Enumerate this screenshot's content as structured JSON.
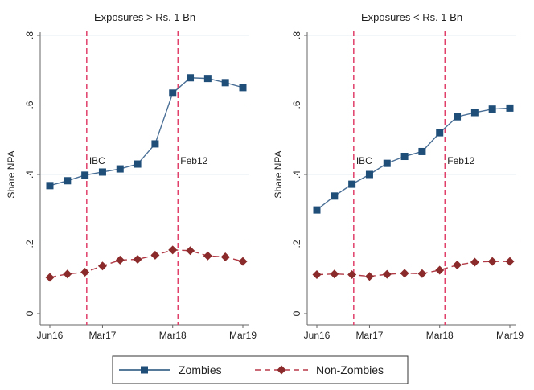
{
  "chart_data": [
    {
      "type": "line",
      "title": "Exposures > Rs. 1 Bn",
      "xlabel": "",
      "ylabel": "Share NPA",
      "ylim": [
        0,
        0.8
      ],
      "yticks": [
        0,
        0.2,
        0.4,
        0.6,
        0.8
      ],
      "ytick_labels": [
        "0",
        ".2",
        ".4",
        ".6",
        ".8"
      ],
      "xtick_labels": [
        "Jun16",
        "Mar17",
        "Mar18",
        "Mar19"
      ],
      "xtick_index": [
        0,
        3,
        7,
        11
      ],
      "x": [
        "Jun16",
        "Sep16",
        "Dec16",
        "Mar17",
        "Jun17",
        "Sep17",
        "Dec17",
        "Mar18",
        "Jun18",
        "Sep18",
        "Dec18",
        "Mar19"
      ],
      "grid": true,
      "vlines": [
        {
          "label": "IBC",
          "at_index": 2.1
        },
        {
          "label": "Feb12",
          "at_index": 7.3
        }
      ],
      "series": [
        {
          "name": "Zombies",
          "color": "#1f4e79",
          "marker": "square",
          "style": "solid",
          "values": [
            0.368,
            0.382,
            0.398,
            0.407,
            0.416,
            0.43,
            0.488,
            0.634,
            0.678,
            0.676,
            0.664,
            0.65
          ]
        },
        {
          "name": "Non-Zombies",
          "color": "#8b2a2a",
          "marker": "diamond",
          "style": "dashed",
          "values": [
            0.104,
            0.114,
            0.119,
            0.137,
            0.154,
            0.156,
            0.168,
            0.183,
            0.181,
            0.166,
            0.163,
            0.15
          ]
        }
      ]
    },
    {
      "type": "line",
      "title": "Exposures < Rs. 1 Bn",
      "xlabel": "",
      "ylabel": "Share NPA",
      "ylim": [
        0,
        0.8
      ],
      "yticks": [
        0,
        0.2,
        0.4,
        0.6,
        0.8
      ],
      "ytick_labels": [
        "0",
        ".2",
        ".4",
        ".6",
        ".8"
      ],
      "xtick_labels": [
        "Jun16",
        "Mar17",
        "Mar18",
        "Mar19"
      ],
      "xtick_index": [
        0,
        3,
        7,
        11
      ],
      "x": [
        "Jun16",
        "Sep16",
        "Dec16",
        "Mar17",
        "Jun17",
        "Sep17",
        "Dec17",
        "Mar18",
        "Jun18",
        "Sep18",
        "Dec18",
        "Mar19"
      ],
      "grid": true,
      "vlines": [
        {
          "label": "IBC",
          "at_index": 2.1
        },
        {
          "label": "Feb12",
          "at_index": 7.3
        }
      ],
      "series": [
        {
          "name": "Zombies",
          "color": "#1f4e79",
          "marker": "square",
          "style": "solid",
          "values": [
            0.298,
            0.338,
            0.372,
            0.4,
            0.432,
            0.452,
            0.466,
            0.52,
            0.566,
            0.578,
            0.588,
            0.591
          ]
        },
        {
          "name": "Non-Zombies",
          "color": "#8b2a2a",
          "marker": "diamond",
          "style": "dashed",
          "values": [
            0.112,
            0.114,
            0.112,
            0.107,
            0.113,
            0.116,
            0.115,
            0.125,
            0.14,
            0.148,
            0.15,
            0.15
          ]
        }
      ]
    }
  ],
  "legend": {
    "placement": "bottom-center",
    "items": [
      {
        "label": "Zombies",
        "color": "#1f4e79",
        "marker": "square",
        "style": "solid"
      },
      {
        "label": "Non-Zombies",
        "color": "#8b2a2a",
        "marker": "diamond",
        "style": "dashed"
      }
    ]
  },
  "colors": {
    "vline": "#e0406a",
    "grid": "#e4eef0",
    "axis": "#666666"
  }
}
